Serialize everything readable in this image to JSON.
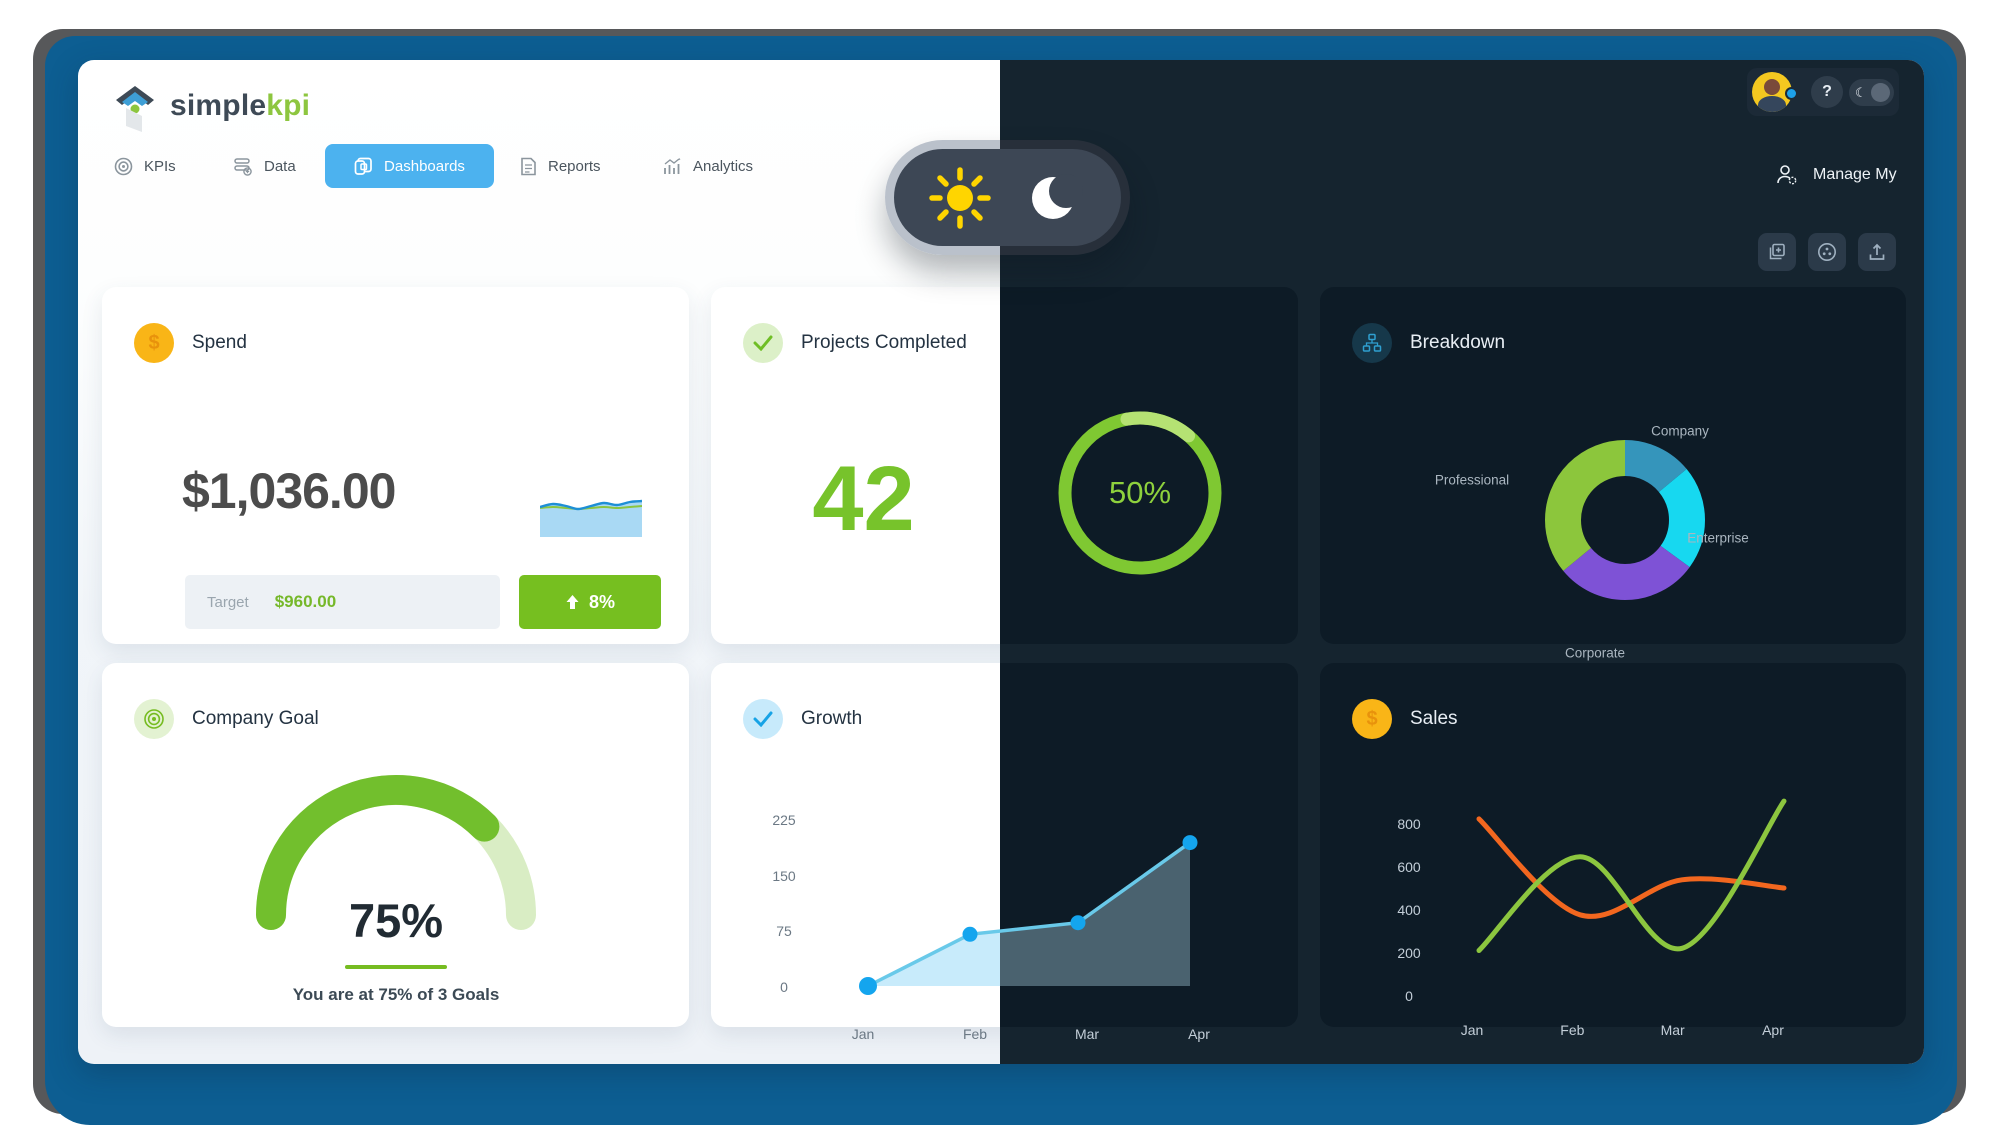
{
  "brand": {
    "name_prefix": "simple",
    "name_suffix": "kpi"
  },
  "nav": {
    "kpis": "KPIs",
    "data": "Data",
    "dashboards": "Dashboards",
    "reports": "Reports",
    "analytics": "Analytics"
  },
  "topbar": {
    "help_label": "?",
    "manage_label": "Manage My"
  },
  "cards": {
    "spend": {
      "title": "Spend",
      "value": "$1,036.00",
      "target_label": "Target",
      "target_value": "$960.00",
      "delta": "8%"
    },
    "projects": {
      "title": "Projects Completed",
      "count": "42",
      "percent_label": "50%"
    },
    "breakdown": {
      "title": "Breakdown"
    },
    "goal": {
      "title": "Company Goal",
      "percent_label": "75%",
      "subtitle": "You are at 75% of 3 Goals"
    },
    "growth": {
      "title": "Growth"
    },
    "sales": {
      "title": "Sales"
    }
  },
  "colors": {
    "frame_blue": "#0d5e92",
    "accent_blue": "#4cb2ef",
    "brand_green": "#76bc21",
    "badge_green": "#76bf20",
    "dark_bg": "#15242f",
    "dark_card": "#0d1b26",
    "sun_yellow": "#ffd500"
  },
  "chart_data": {
    "spend_sparkline": {
      "type": "area",
      "x": [
        0,
        13,
        26,
        38,
        51,
        64,
        77,
        90,
        102
      ],
      "blue_line": [
        10,
        7,
        9,
        12,
        9,
        6,
        8,
        5,
        4
      ],
      "green_line": [
        11,
        10,
        11,
        12,
        11,
        10,
        11,
        10,
        9
      ],
      "line_color": "#1e8fd5",
      "fill_color": "#a9d9f4",
      "green_color": "#8bc53f"
    },
    "projects_ring": {
      "type": "donut",
      "percent": 50,
      "ring_color": "#7fc832",
      "ring_highlight": "#b5e273"
    },
    "breakdown_donut": {
      "type": "pie",
      "labels": [
        "Company",
        "Enterprise",
        "Corporate",
        "Professional"
      ],
      "values": [
        14,
        21,
        29,
        36
      ],
      "colors": [
        "#3595bb",
        "#17d8f0",
        "#7e52d6",
        "#8cc63c"
      ],
      "legend_position": "around"
    },
    "goal_gauge": {
      "type": "gauge",
      "percent": 75,
      "fill_color": "#72bf2d",
      "track_color": "#d9edc4"
    },
    "growth": {
      "type": "area",
      "title": "Growth",
      "x_ticks": [
        "Jan",
        "Feb",
        "Mar",
        "Apr"
      ],
      "y_ticks": [
        "225",
        "150",
        "75",
        "0"
      ],
      "values": [
        0,
        71,
        87,
        197
      ],
      "ylim": [
        0,
        225
      ],
      "line_color": "#69c9e9",
      "dot_color": "#14a5ee"
    },
    "sales": {
      "type": "line",
      "title": "Sales",
      "x_ticks": [
        "Jan",
        "Feb",
        "Mar",
        "Apr"
      ],
      "y_ticks": [
        "800",
        "600",
        "400",
        "200",
        "0"
      ],
      "ylim": [
        0,
        1000
      ],
      "series": [
        {
          "name": "orange",
          "color": "#f2671f",
          "values": [
            830,
            400,
            557,
            520
          ]
        },
        {
          "name": "green",
          "color": "#8cc63f",
          "values": [
            240,
            660,
            250,
            910
          ]
        }
      ]
    }
  }
}
